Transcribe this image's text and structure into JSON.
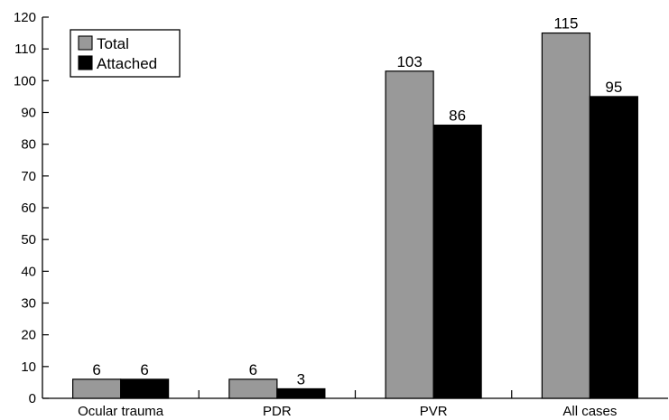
{
  "chart_data": {
    "type": "bar",
    "categories": [
      "Ocular trauma",
      "PDR",
      "PVR",
      "All cases"
    ],
    "series": [
      {
        "name": "Total",
        "values": [
          6,
          6,
          103,
          115
        ],
        "color": "#999999"
      },
      {
        "name": "Attached",
        "values": [
          6,
          3,
          86,
          95
        ],
        "color": "#000000"
      }
    ],
    "title": "",
    "xlabel": "",
    "ylabel": "",
    "ylim": [
      0,
      120
    ],
    "yticks": [
      0,
      10,
      20,
      30,
      40,
      50,
      60,
      70,
      80,
      90,
      100,
      110,
      120
    ],
    "grid": false,
    "legend_position": "top-left"
  }
}
